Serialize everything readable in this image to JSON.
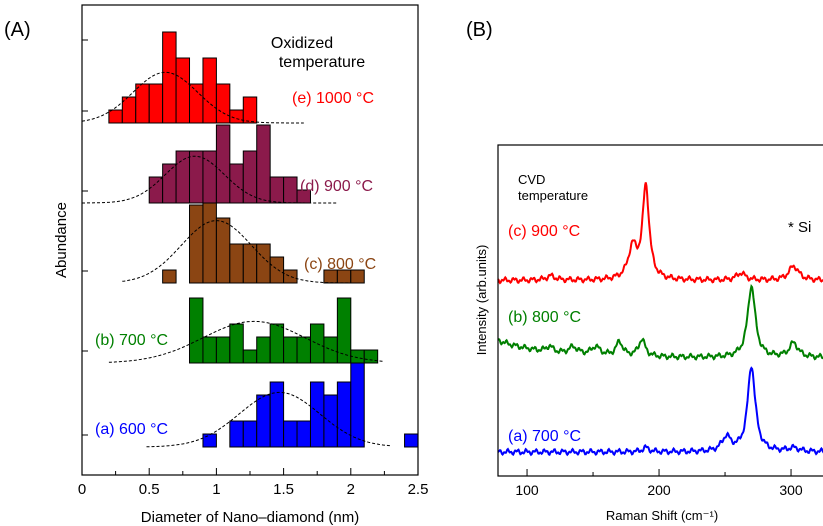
{
  "chart_data": [
    {
      "type": "bar",
      "panel_label": "(A)",
      "xlabel": "Diameter of Nano–diamond (nm)",
      "ylabel": "Abundance",
      "xlim": [
        0,
        2.5
      ],
      "xticks": [
        "0",
        "0.5",
        "1",
        "1.5",
        "2",
        "2.5"
      ],
      "annotation": [
        "Oxidized",
        "temperature"
      ],
      "grid": false,
      "bin_width": 0.1,
      "series": [
        {
          "name": "(a) 600 °C",
          "color": "#0000ff",
          "bins_start": 0.9,
          "values": [
            1,
            0,
            2,
            2,
            4,
            5,
            2,
            2,
            5,
            4,
            5,
            7,
            0,
            0,
            0,
            1
          ],
          "fit": {
            "center": 1.47,
            "width": 0.3,
            "peak": 4.2,
            "range": [
              0.48,
              2.3
            ]
          }
        },
        {
          "name": "(b) 700 °C",
          "color": "#008000",
          "bins_start": 0.8,
          "values": [
            5,
            2,
            2,
            3,
            1,
            2,
            3,
            2,
            2,
            3,
            2,
            5,
            1,
            1
          ],
          "fit": {
            "center": 1.28,
            "width": 0.38,
            "peak": 3.2,
            "range": [
              0.2,
              2.25
            ]
          }
        },
        {
          "name": "(c) 800 °C",
          "color": "#8b4513",
          "bins_start": 0.6,
          "values": [
            1,
            0,
            6,
            8,
            5,
            3,
            3,
            3,
            2,
            1,
            0,
            0,
            1,
            1,
            1
          ],
          "fit": {
            "center": 1.0,
            "width": 0.26,
            "peak": 4.8,
            "range": [
              0.3,
              2.05
            ]
          }
        },
        {
          "name": "(d) 900 °C",
          "color": "#8b1a4b",
          "bins_start": 0.5,
          "values": [
            2,
            3,
            4,
            4,
            4,
            6,
            3,
            4,
            6,
            2,
            2,
            1,
            0
          ],
          "fit": {
            "center": 0.84,
            "width": 0.22,
            "peak": 3.6,
            "range": [
              0.0,
              1.9
            ]
          }
        },
        {
          "name": "(e) 1000 °C",
          "color": "#ff0000",
          "bins_start": 0.2,
          "values": [
            1,
            2,
            3,
            3,
            7,
            5,
            3,
            5,
            3,
            1,
            2
          ],
          "fit": {
            "center": 0.62,
            "width": 0.24,
            "peak": 3.9,
            "range": [
              0.0,
              1.65
            ]
          }
        }
      ]
    },
    {
      "type": "line",
      "panel_label": "(B)",
      "xlabel": "Raman Shift (cm⁻¹)",
      "ylabel": "Intensity (arb.units)",
      "xlim": [
        78,
        328
      ],
      "xticks": [
        "100",
        "200",
        "300"
      ],
      "annotation": [
        "CVD",
        "temperature"
      ],
      "peak_marker": "* Si",
      "grid": false,
      "series": [
        {
          "name": "(a) 700 °C",
          "color": "#0000ff",
          "offset": 0,
          "peaks": [
            {
              "x": 270,
              "h": 6.0,
              "w": 3.5
            },
            {
              "x": 251,
              "h": 1.0,
              "w": 4.0
            },
            {
              "x": 190,
              "h": 0.3,
              "w": 3.0
            },
            {
              "x": 302,
              "h": 0.25,
              "w": 5.0
            }
          ]
        },
        {
          "name": "(b) 800 °C",
          "color": "#008000",
          "offset": 6.6,
          "peaks": [
            {
              "x": 270,
              "h": 5.0,
              "w": 3.5
            },
            {
              "x": 187,
              "h": 1.2,
              "w": 3.0
            },
            {
              "x": 170,
              "h": 1.0,
              "w": 3.0
            },
            {
              "x": 152,
              "h": 0.6,
              "w": 4.0
            },
            {
              "x": 302,
              "h": 1.0,
              "w": 4.0
            },
            {
              "x": 117,
              "h": 0.4,
              "w": 3.0
            },
            {
              "x": 135,
              "h": 0.5,
              "w": 4.0
            }
          ]
        },
        {
          "name": "(c) 900 °C",
          "color": "#ff0000",
          "offset": 12.0,
          "peaks": [
            {
              "x": 190,
              "h": 6.5,
              "w": 3.0
            },
            {
              "x": 180,
              "h": 2.2,
              "w": 4.0
            },
            {
              "x": 302,
              "h": 1.0,
              "w": 4.5
            },
            {
              "x": 262,
              "h": 0.5,
              "w": 4.0
            },
            {
              "x": 118,
              "h": 0.3,
              "w": 4.0
            }
          ]
        }
      ]
    }
  ]
}
